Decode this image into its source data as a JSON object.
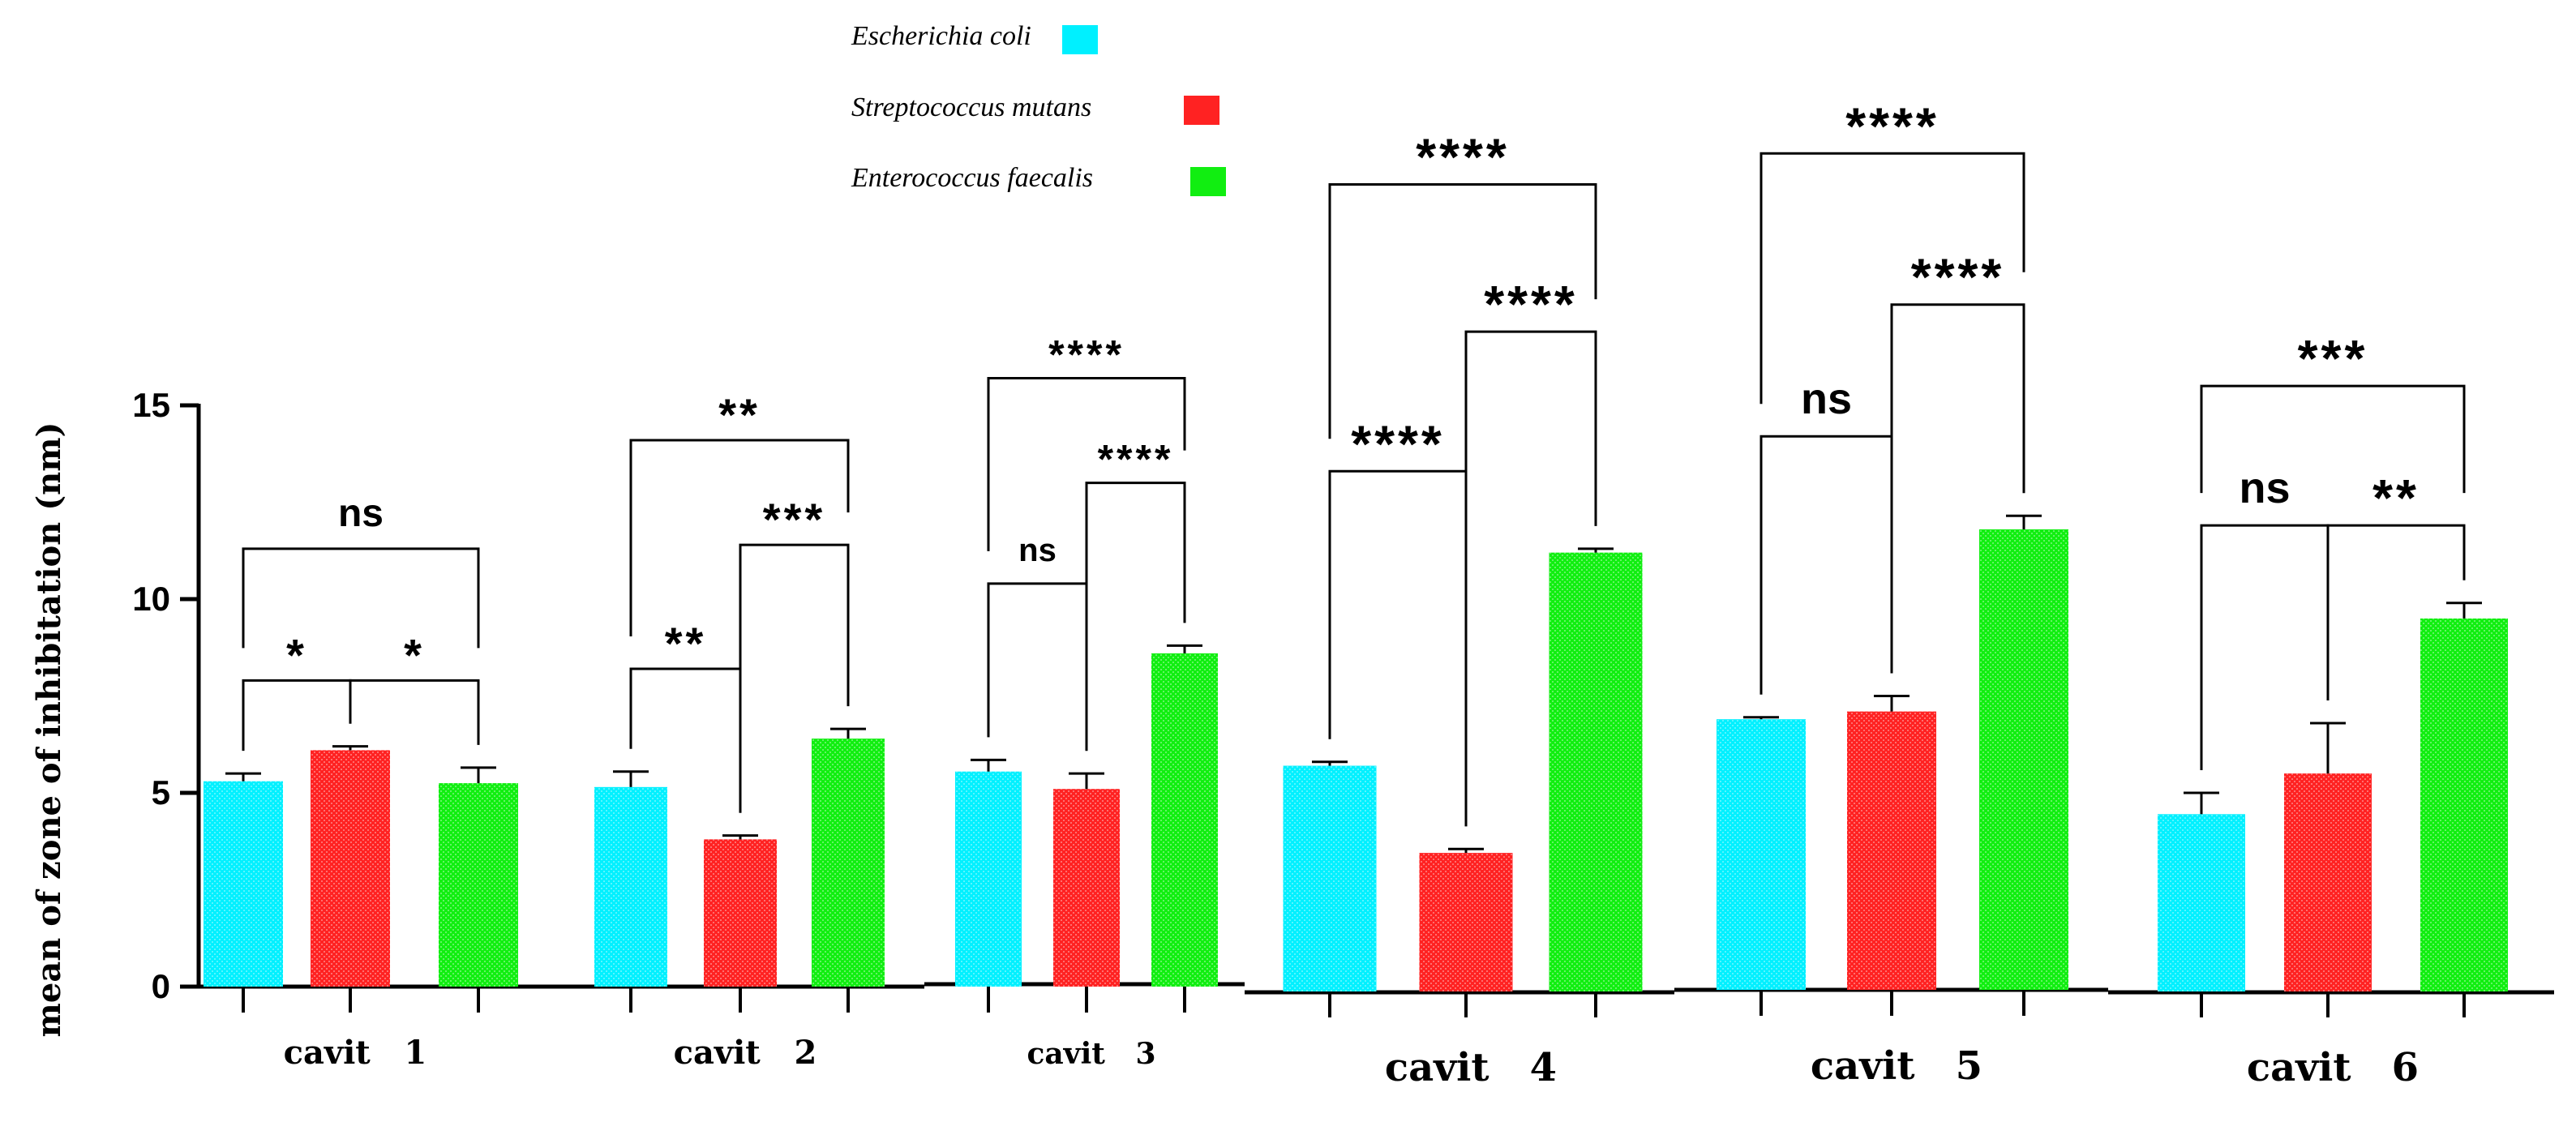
{
  "chart_data": {
    "type": "bar",
    "title": "",
    "xlabel": "",
    "ylabel": "mean of zone of inhibitation (nm)",
    "ylim": [
      0,
      15
    ],
    "yticks": [
      "0",
      "5",
      "10",
      "15"
    ],
    "grid": false,
    "legend_position": "top-center",
    "categories": [
      "cavit   1",
      "cavit   2",
      "cavit   3",
      "cavit   4",
      "cavit   5",
      "cavit   6"
    ],
    "series": [
      {
        "name": "Escherichia coli",
        "color": "#00f0ff",
        "values": [
          5.3,
          5.15,
          5.55,
          5.7,
          6.9,
          4.45
        ],
        "errors": [
          0.2,
          0.4,
          0.3,
          0.1,
          0.05,
          0.55
        ]
      },
      {
        "name": "Streptococcus mutans",
        "color": "#ff2222",
        "values": [
          6.1,
          3.8,
          5.1,
          3.45,
          7.1,
          5.5
        ],
        "errors": [
          0.1,
          0.1,
          0.4,
          0.1,
          0.4,
          1.3
        ]
      },
      {
        "name": "Enterococcus faecalis",
        "color": "#11ee11",
        "values": [
          5.25,
          6.4,
          8.6,
          11.2,
          11.8,
          9.5
        ],
        "errors": [
          0.4,
          0.25,
          0.2,
          0.1,
          0.35,
          0.4
        ]
      }
    ],
    "significance": [
      {
        "group": 0,
        "pair": [
          0,
          1
        ],
        "level": 7.9,
        "label": "*"
      },
      {
        "group": 0,
        "pair": [
          1,
          2
        ],
        "level": 7.9,
        "label": "*"
      },
      {
        "group": 0,
        "pair": [
          0,
          2
        ],
        "level": 11.3,
        "label": "ns"
      },
      {
        "group": 1,
        "pair": [
          0,
          1
        ],
        "level": 8.2,
        "label": "**"
      },
      {
        "group": 1,
        "pair": [
          1,
          2
        ],
        "level": 11.4,
        "label": "***"
      },
      {
        "group": 1,
        "pair": [
          0,
          2
        ],
        "level": 14.1,
        "label": "**"
      },
      {
        "group": 2,
        "pair": [
          0,
          1
        ],
        "level": 10.4,
        "label": "ns"
      },
      {
        "group": 2,
        "pair": [
          1,
          2
        ],
        "level": 13.0,
        "label": "****"
      },
      {
        "group": 2,
        "pair": [
          0,
          2
        ],
        "level": 15.7,
        "label": "****"
      },
      {
        "group": 3,
        "pair": [
          0,
          1
        ],
        "level": 13.3,
        "label": "****"
      },
      {
        "group": 3,
        "pair": [
          1,
          2
        ],
        "level": 16.9,
        "label": "****"
      },
      {
        "group": 3,
        "pair": [
          0,
          2
        ],
        "level": 20.7,
        "label": "****"
      },
      {
        "group": 4,
        "pair": [
          0,
          1
        ],
        "level": 14.2,
        "label": "ns"
      },
      {
        "group": 4,
        "pair": [
          1,
          2
        ],
        "level": 17.6,
        "label": "****"
      },
      {
        "group": 4,
        "pair": [
          0,
          2
        ],
        "level": 21.5,
        "label": "****"
      },
      {
        "group": 5,
        "pair": [
          0,
          1
        ],
        "level": 11.9,
        "label": "ns"
      },
      {
        "group": 5,
        "pair": [
          1,
          2
        ],
        "level": 11.9,
        "label": "**"
      },
      {
        "group": 5,
        "pair": [
          0,
          2
        ],
        "level": 15.5,
        "label": "***"
      }
    ]
  }
}
